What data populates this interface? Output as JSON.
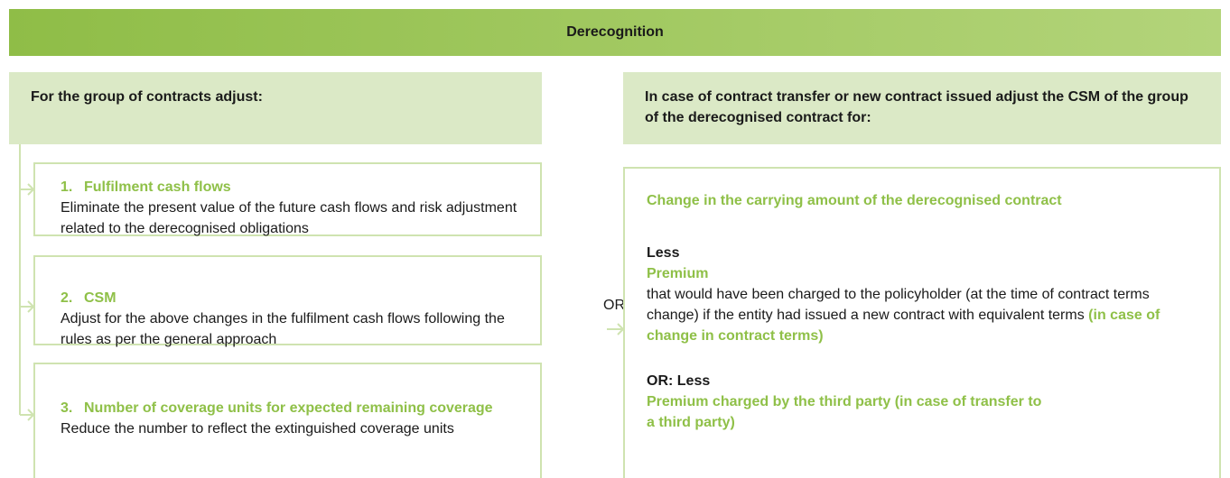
{
  "header": {
    "title": "Derecognition"
  },
  "left": {
    "heading": "For the group of contracts adjust:",
    "items": [
      {
        "number": "1.",
        "title": "Fulfilment cash flows",
        "text": "Eliminate the present value of the future cash flows and risk adjustment related to the derecognised obligations"
      },
      {
        "number": "2.",
        "title": "CSM",
        "text": "Adjust for the above changes in the fulfilment cash flows following the rules as per the general approach"
      },
      {
        "number": "3.",
        "title": "Number of coverage units for expected remaining coverage",
        "text": "Reduce the number to reflect the extinguished coverage units"
      }
    ]
  },
  "connector": "OR",
  "right": {
    "heading": "In case of contract transfer or new contract issued adjust the CSM of the group of the derecognised contract for:",
    "title": "Change in the carrying amount of the derecognised contract",
    "less_label": "Less",
    "premium_title": "Premium",
    "premium_text": "that would have been charged to the policyholder (at the time of contract terms change) if the entity had issued a new contract with equivalent terms",
    "premium_note": "(in case of change in contract terms)",
    "or_label": "OR: Less",
    "third_party": "Premium charged by the third party (in case of transfer to a third party)"
  }
}
